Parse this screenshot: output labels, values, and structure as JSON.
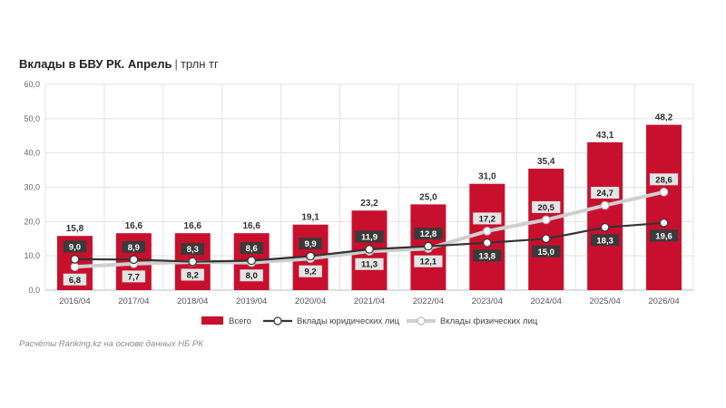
{
  "title": "Вклады в БВУ РК. Апрель",
  "unit": "трлн тг",
  "source": "Расчёты Ranking.kz на основе данных НБ РК",
  "chart_data": {
    "type": "bar",
    "categories": [
      "2016/04",
      "2017/04",
      "2018/04",
      "2019/04",
      "2020/04",
      "2021/04",
      "2022/04",
      "2023/04",
      "2024/04",
      "2025/04",
      "2026/04"
    ],
    "ylim": [
      0,
      60
    ],
    "yticks": [
      "0,0",
      "10,0",
      "20,0",
      "30,0",
      "40,0",
      "50,0",
      "60,0"
    ],
    "grid": true,
    "legend_position": "bottom",
    "series": [
      {
        "name": "Всего",
        "kind": "bar",
        "color": "#c8102e",
        "values": [
          15.8,
          16.6,
          16.6,
          16.6,
          19.1,
          23.2,
          25.0,
          31.0,
          35.4,
          43.1,
          48.2
        ],
        "labels": [
          "15,8",
          "16,6",
          "16,6",
          "16,6",
          "19,1",
          "23,2",
          "25,0",
          "31,0",
          "35,4",
          "43,1",
          "48,2"
        ]
      },
      {
        "name": "Вклады юридических лиц",
        "kind": "line",
        "color": "#333333",
        "values": [
          9.0,
          8.9,
          8.3,
          8.6,
          9.9,
          11.9,
          12.8,
          13.8,
          15.0,
          18.3,
          19.6
        ],
        "labels": [
          "9,0",
          "8,9",
          "8,3",
          "8,6",
          "9,9",
          "11,9",
          "12,8",
          "13,8",
          "15,0",
          "18,3",
          "19,6"
        ]
      },
      {
        "name": "Вклады физических лиц",
        "kind": "line",
        "color": "#d0d0d0",
        "values": [
          6.8,
          7.7,
          8.2,
          8.0,
          9.2,
          11.3,
          12.1,
          17.2,
          20.5,
          24.7,
          28.6
        ],
        "labels": [
          "6,8",
          "7,7",
          "8,2",
          "8,0",
          "9,2",
          "11,3",
          "12,1",
          "17,2",
          "20,5",
          "24,7",
          "28,6"
        ]
      }
    ]
  }
}
